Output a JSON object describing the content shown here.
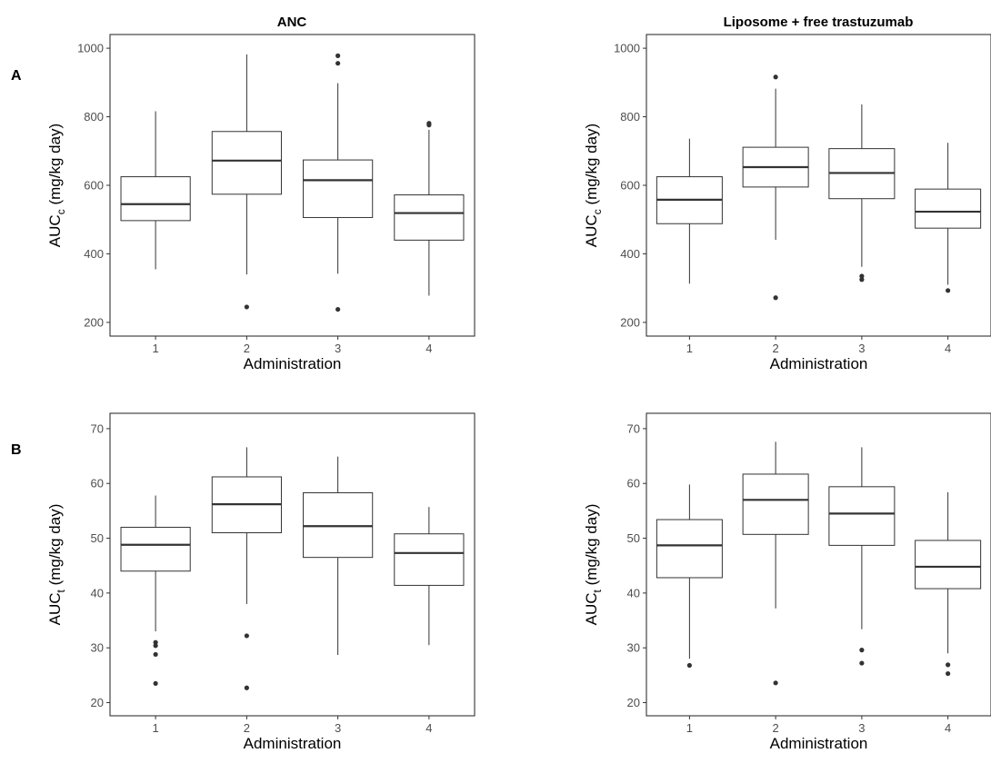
{
  "chart_data": [
    {
      "type": "box",
      "panel": "A-left",
      "row_label": "A",
      "title": "ANC",
      "xlabel": "Administration",
      "ylabel_main": "AUC",
      "ylabel_sub": "c",
      "ylabel_unit": " (mg/kg day)",
      "categories": [
        "1",
        "2",
        "3",
        "4"
      ],
      "ylim": [
        160,
        1040
      ],
      "yticks": [
        200,
        400,
        600,
        800,
        1000
      ],
      "boxes": [
        {
          "category": "1",
          "lower_whisker": 355,
          "q1": 497,
          "median": 545,
          "q3": 625,
          "upper_whisker": 816,
          "outliers": []
        },
        {
          "category": "2",
          "lower_whisker": 340,
          "q1": 574,
          "median": 672,
          "q3": 757,
          "upper_whisker": 982,
          "outliers": [
            245
          ]
        },
        {
          "category": "3",
          "lower_whisker": 342,
          "q1": 506,
          "median": 615,
          "q3": 674,
          "upper_whisker": 898,
          "outliers": [
            238,
            956,
            978
          ]
        },
        {
          "category": "4",
          "lower_whisker": 278,
          "q1": 440,
          "median": 519,
          "q3": 572,
          "upper_whisker": 762,
          "outliers": [
            776,
            781
          ]
        }
      ]
    },
    {
      "type": "box",
      "panel": "A-right",
      "row_label": "",
      "title": "Liposome + free trastuzumab",
      "xlabel": "Administration",
      "ylabel_main": "AUC",
      "ylabel_sub": "c",
      "ylabel_unit": " (mg/kg day)",
      "categories": [
        "1",
        "2",
        "3",
        "4"
      ],
      "ylim": [
        160,
        1040
      ],
      "yticks": [
        200,
        400,
        600,
        800,
        1000
      ],
      "boxes": [
        {
          "category": "1",
          "lower_whisker": 313,
          "q1": 488,
          "median": 558,
          "q3": 625,
          "upper_whisker": 736,
          "outliers": []
        },
        {
          "category": "2",
          "lower_whisker": 441,
          "q1": 595,
          "median": 653,
          "q3": 711,
          "upper_whisker": 882,
          "outliers": [
            272,
            916
          ]
        },
        {
          "category": "3",
          "lower_whisker": 362,
          "q1": 561,
          "median": 636,
          "q3": 707,
          "upper_whisker": 836,
          "outliers": [
            325,
            335
          ]
        },
        {
          "category": "4",
          "lower_whisker": 310,
          "q1": 475,
          "median": 523,
          "q3": 589,
          "upper_whisker": 724,
          "outliers": [
            293
          ]
        }
      ]
    },
    {
      "type": "box",
      "panel": "B-left",
      "row_label": "B",
      "title": "",
      "xlabel": "Administration",
      "ylabel_main": "AUC",
      "ylabel_sub": "t",
      "ylabel_unit": " (mg/kg day)",
      "categories": [
        "1",
        "2",
        "3",
        "4"
      ],
      "ylim": [
        17.6,
        72.8
      ],
      "yticks": [
        20,
        30,
        40,
        50,
        60,
        70
      ],
      "boxes": [
        {
          "category": "1",
          "lower_whisker": 33.0,
          "q1": 44.0,
          "median": 48.8,
          "q3": 52.0,
          "upper_whisker": 57.8,
          "outliers": [
            23.5,
            28.8,
            30.4,
            31.0
          ]
        },
        {
          "category": "2",
          "lower_whisker": 38.0,
          "q1": 51.0,
          "median": 56.2,
          "q3": 61.2,
          "upper_whisker": 66.6,
          "outliers": [
            22.7,
            32.2
          ]
        },
        {
          "category": "3",
          "lower_whisker": 28.7,
          "q1": 46.5,
          "median": 52.2,
          "q3": 58.3,
          "upper_whisker": 64.9,
          "outliers": []
        },
        {
          "category": "4",
          "lower_whisker": 30.5,
          "q1": 41.4,
          "median": 47.3,
          "q3": 50.8,
          "upper_whisker": 55.7,
          "outliers": []
        }
      ]
    },
    {
      "type": "box",
      "panel": "B-right",
      "row_label": "",
      "title": "",
      "xlabel": "Administration",
      "ylabel_main": "AUC",
      "ylabel_sub": "t",
      "ylabel_unit": " (mg/kg day)",
      "categories": [
        "1",
        "2",
        "3",
        "4"
      ],
      "ylim": [
        17.6,
        72.8
      ],
      "yticks": [
        20,
        30,
        40,
        50,
        60,
        70
      ],
      "boxes": [
        {
          "category": "1",
          "lower_whisker": 28.0,
          "q1": 42.8,
          "median": 48.7,
          "q3": 53.4,
          "upper_whisker": 59.8,
          "outliers": [
            26.8
          ]
        },
        {
          "category": "2",
          "lower_whisker": 37.2,
          "q1": 50.7,
          "median": 57.0,
          "q3": 61.7,
          "upper_whisker": 67.6,
          "outliers": [
            23.6
          ]
        },
        {
          "category": "3",
          "lower_whisker": 33.4,
          "q1": 48.7,
          "median": 54.5,
          "q3": 59.4,
          "upper_whisker": 66.6,
          "outliers": [
            27.2,
            29.6
          ]
        },
        {
          "category": "4",
          "lower_whisker": 29.0,
          "q1": 40.8,
          "median": 44.8,
          "q3": 49.6,
          "upper_whisker": 58.4,
          "outliers": [
            25.3,
            26.9
          ]
        }
      ]
    }
  ]
}
